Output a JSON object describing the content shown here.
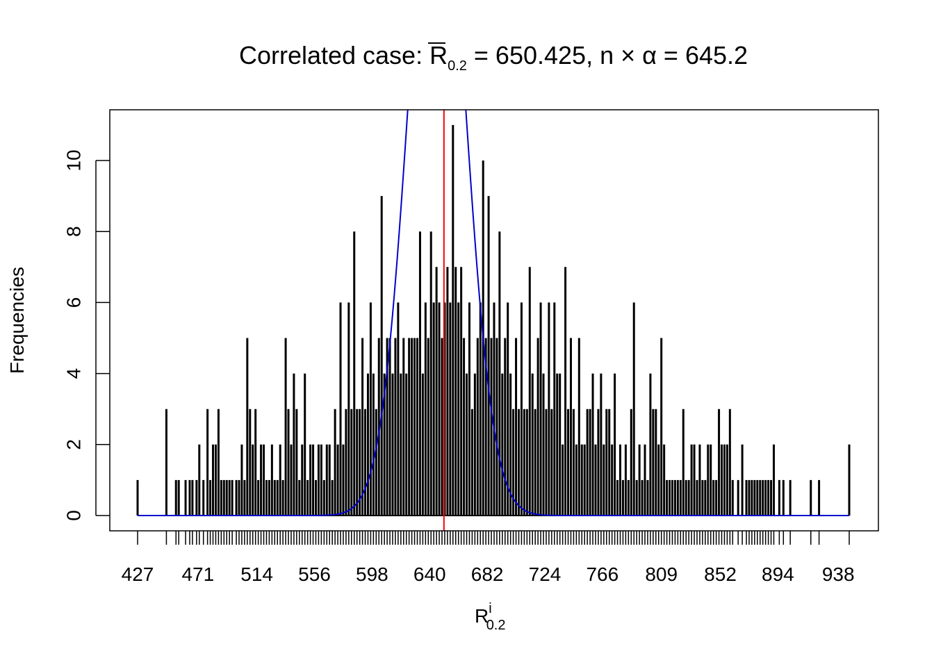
{
  "chart_data": {
    "type": "bar",
    "title": {
      "prefix": "Correlated case: ",
      "symbol": "R",
      "symbol_subscript": "0.2",
      "equals_value": " = 650.425, n × α = 645.2"
    },
    "xlabel": {
      "base": "R",
      "superscript": "i",
      "subscript": "0.2"
    },
    "ylabel": "Frequencies",
    "x_tick_labels": [
      "427",
      "471",
      "514",
      "556",
      "598",
      "640",
      "682",
      "724",
      "766",
      "809",
      "852",
      "894",
      "938"
    ],
    "y_ticks": [
      0,
      2,
      4,
      6,
      8,
      10
    ],
    "y_tick_labels": [
      "0",
      "2",
      "4",
      "6",
      "8",
      "10"
    ],
    "xlim": [
      422,
      956
    ],
    "ylim": [
      0,
      11.5
    ],
    "grid": false,
    "legend": "none",
    "reference_line": {
      "x": 650.425,
      "color": "#ff0000"
    },
    "normal_curve": {
      "mean": 645.2,
      "sd": 20.5,
      "peak": 19.5,
      "color": "#0000cc"
    },
    "bar_color": "#000000",
    "bars": [
      [
        427,
        1
      ],
      [
        448,
        3
      ],
      [
        455,
        1
      ],
      [
        457,
        1
      ],
      [
        462,
        1
      ],
      [
        465,
        1
      ],
      [
        467,
        1
      ],
      [
        470,
        1
      ],
      [
        472,
        2
      ],
      [
        475,
        1
      ],
      [
        478,
        3
      ],
      [
        480,
        1
      ],
      [
        482,
        2
      ],
      [
        484,
        2
      ],
      [
        486,
        3
      ],
      [
        488,
        1
      ],
      [
        490,
        1
      ],
      [
        492,
        1
      ],
      [
        494,
        1
      ],
      [
        496,
        1
      ],
      [
        499,
        1
      ],
      [
        501,
        1
      ],
      [
        503,
        2
      ],
      [
        505,
        1
      ],
      [
        507,
        5
      ],
      [
        509,
        3
      ],
      [
        511,
        2
      ],
      [
        513,
        3
      ],
      [
        515,
        1
      ],
      [
        517,
        2
      ],
      [
        519,
        2
      ],
      [
        521,
        1
      ],
      [
        523,
        1
      ],
      [
        525,
        2
      ],
      [
        527,
        1
      ],
      [
        529,
        1
      ],
      [
        531,
        2
      ],
      [
        533,
        1
      ],
      [
        535,
        5
      ],
      [
        537,
        3
      ],
      [
        539,
        2
      ],
      [
        541,
        4
      ],
      [
        543,
        3
      ],
      [
        545,
        1
      ],
      [
        547,
        2
      ],
      [
        549,
        4
      ],
      [
        551,
        1
      ],
      [
        553,
        2
      ],
      [
        555,
        2
      ],
      [
        557,
        1
      ],
      [
        559,
        2
      ],
      [
        561,
        2
      ],
      [
        563,
        1
      ],
      [
        565,
        2
      ],
      [
        567,
        2
      ],
      [
        569,
        1
      ],
      [
        571,
        3
      ],
      [
        573,
        2
      ],
      [
        575,
        6
      ],
      [
        577,
        2
      ],
      [
        579,
        3
      ],
      [
        581,
        6
      ],
      [
        583,
        3
      ],
      [
        585,
        8
      ],
      [
        587,
        3
      ],
      [
        589,
        3
      ],
      [
        591,
        5
      ],
      [
        593,
        3
      ],
      [
        595,
        4
      ],
      [
        597,
        6
      ],
      [
        599,
        4
      ],
      [
        601,
        3
      ],
      [
        603,
        5
      ],
      [
        605,
        9
      ],
      [
        607,
        4
      ],
      [
        609,
        5
      ],
      [
        611,
        5
      ],
      [
        613,
        4
      ],
      [
        615,
        5
      ],
      [
        617,
        6
      ],
      [
        619,
        4
      ],
      [
        621,
        5
      ],
      [
        623,
        4
      ],
      [
        625,
        5
      ],
      [
        627,
        5
      ],
      [
        629,
        5
      ],
      [
        631,
        5
      ],
      [
        633,
        8
      ],
      [
        635,
        4
      ],
      [
        637,
        6
      ],
      [
        639,
        5
      ],
      [
        641,
        8
      ],
      [
        643,
        6
      ],
      [
        645,
        7
      ],
      [
        647,
        6
      ],
      [
        649,
        5
      ],
      [
        651,
        6
      ],
      [
        653,
        7
      ],
      [
        655,
        6
      ],
      [
        657,
        11
      ],
      [
        659,
        7
      ],
      [
        661,
        6
      ],
      [
        663,
        7
      ],
      [
        665,
        5
      ],
      [
        667,
        4
      ],
      [
        669,
        6
      ],
      [
        671,
        3
      ],
      [
        673,
        4
      ],
      [
        675,
        5
      ],
      [
        677,
        6
      ],
      [
        679,
        10
      ],
      [
        681,
        5
      ],
      [
        683,
        9
      ],
      [
        685,
        5
      ],
      [
        687,
        6
      ],
      [
        689,
        5
      ],
      [
        691,
        8
      ],
      [
        693,
        4
      ],
      [
        695,
        5
      ],
      [
        697,
        6
      ],
      [
        699,
        4
      ],
      [
        701,
        3
      ],
      [
        703,
        5
      ],
      [
        705,
        3
      ],
      [
        707,
        6
      ],
      [
        709,
        3
      ],
      [
        711,
        3
      ],
      [
        713,
        7
      ],
      [
        715,
        4
      ],
      [
        717,
        3
      ],
      [
        719,
        5
      ],
      [
        721,
        6
      ],
      [
        723,
        4
      ],
      [
        725,
        3
      ],
      [
        727,
        6
      ],
      [
        729,
        3
      ],
      [
        731,
        6
      ],
      [
        733,
        4
      ],
      [
        735,
        4
      ],
      [
        737,
        2
      ],
      [
        739,
        7
      ],
      [
        741,
        3
      ],
      [
        743,
        5
      ],
      [
        745,
        3
      ],
      [
        747,
        2
      ],
      [
        749,
        5
      ],
      [
        751,
        2
      ],
      [
        753,
        2
      ],
      [
        755,
        3
      ],
      [
        757,
        3
      ],
      [
        759,
        4
      ],
      [
        761,
        2
      ],
      [
        763,
        3
      ],
      [
        765,
        4
      ],
      [
        767,
        2
      ],
      [
        769,
        3
      ],
      [
        771,
        3
      ],
      [
        773,
        2
      ],
      [
        775,
        4
      ],
      [
        777,
        1
      ],
      [
        779,
        2
      ],
      [
        781,
        1
      ],
      [
        783,
        2
      ],
      [
        785,
        1
      ],
      [
        787,
        3
      ],
      [
        789,
        6
      ],
      [
        791,
        1
      ],
      [
        793,
        2
      ],
      [
        795,
        1
      ],
      [
        797,
        2
      ],
      [
        799,
        1
      ],
      [
        801,
        4
      ],
      [
        803,
        3
      ],
      [
        805,
        3
      ],
      [
        807,
        2
      ],
      [
        809,
        5
      ],
      [
        811,
        2
      ],
      [
        813,
        1
      ],
      [
        815,
        1
      ],
      [
        817,
        1
      ],
      [
        819,
        1
      ],
      [
        821,
        1
      ],
      [
        823,
        1
      ],
      [
        825,
        3
      ],
      [
        827,
        1
      ],
      [
        829,
        1
      ],
      [
        831,
        2
      ],
      [
        833,
        2
      ],
      [
        835,
        1
      ],
      [
        837,
        2
      ],
      [
        839,
        1
      ],
      [
        841,
        1
      ],
      [
        843,
        2
      ],
      [
        845,
        2
      ],
      [
        847,
        1
      ],
      [
        849,
        1
      ],
      [
        851,
        3
      ],
      [
        853,
        2
      ],
      [
        855,
        2
      ],
      [
        857,
        2
      ],
      [
        859,
        3
      ],
      [
        861,
        1
      ],
      [
        865,
        1
      ],
      [
        868,
        2
      ],
      [
        871,
        1
      ],
      [
        873,
        1
      ],
      [
        875,
        1
      ],
      [
        877,
        1
      ],
      [
        879,
        1
      ],
      [
        881,
        1
      ],
      [
        883,
        1
      ],
      [
        885,
        1
      ],
      [
        887,
        1
      ],
      [
        889,
        1
      ],
      [
        891,
        2
      ],
      [
        895,
        1
      ],
      [
        898,
        1
      ],
      [
        903,
        1
      ],
      [
        918,
        1
      ],
      [
        924,
        1
      ],
      [
        946,
        2
      ]
    ]
  }
}
